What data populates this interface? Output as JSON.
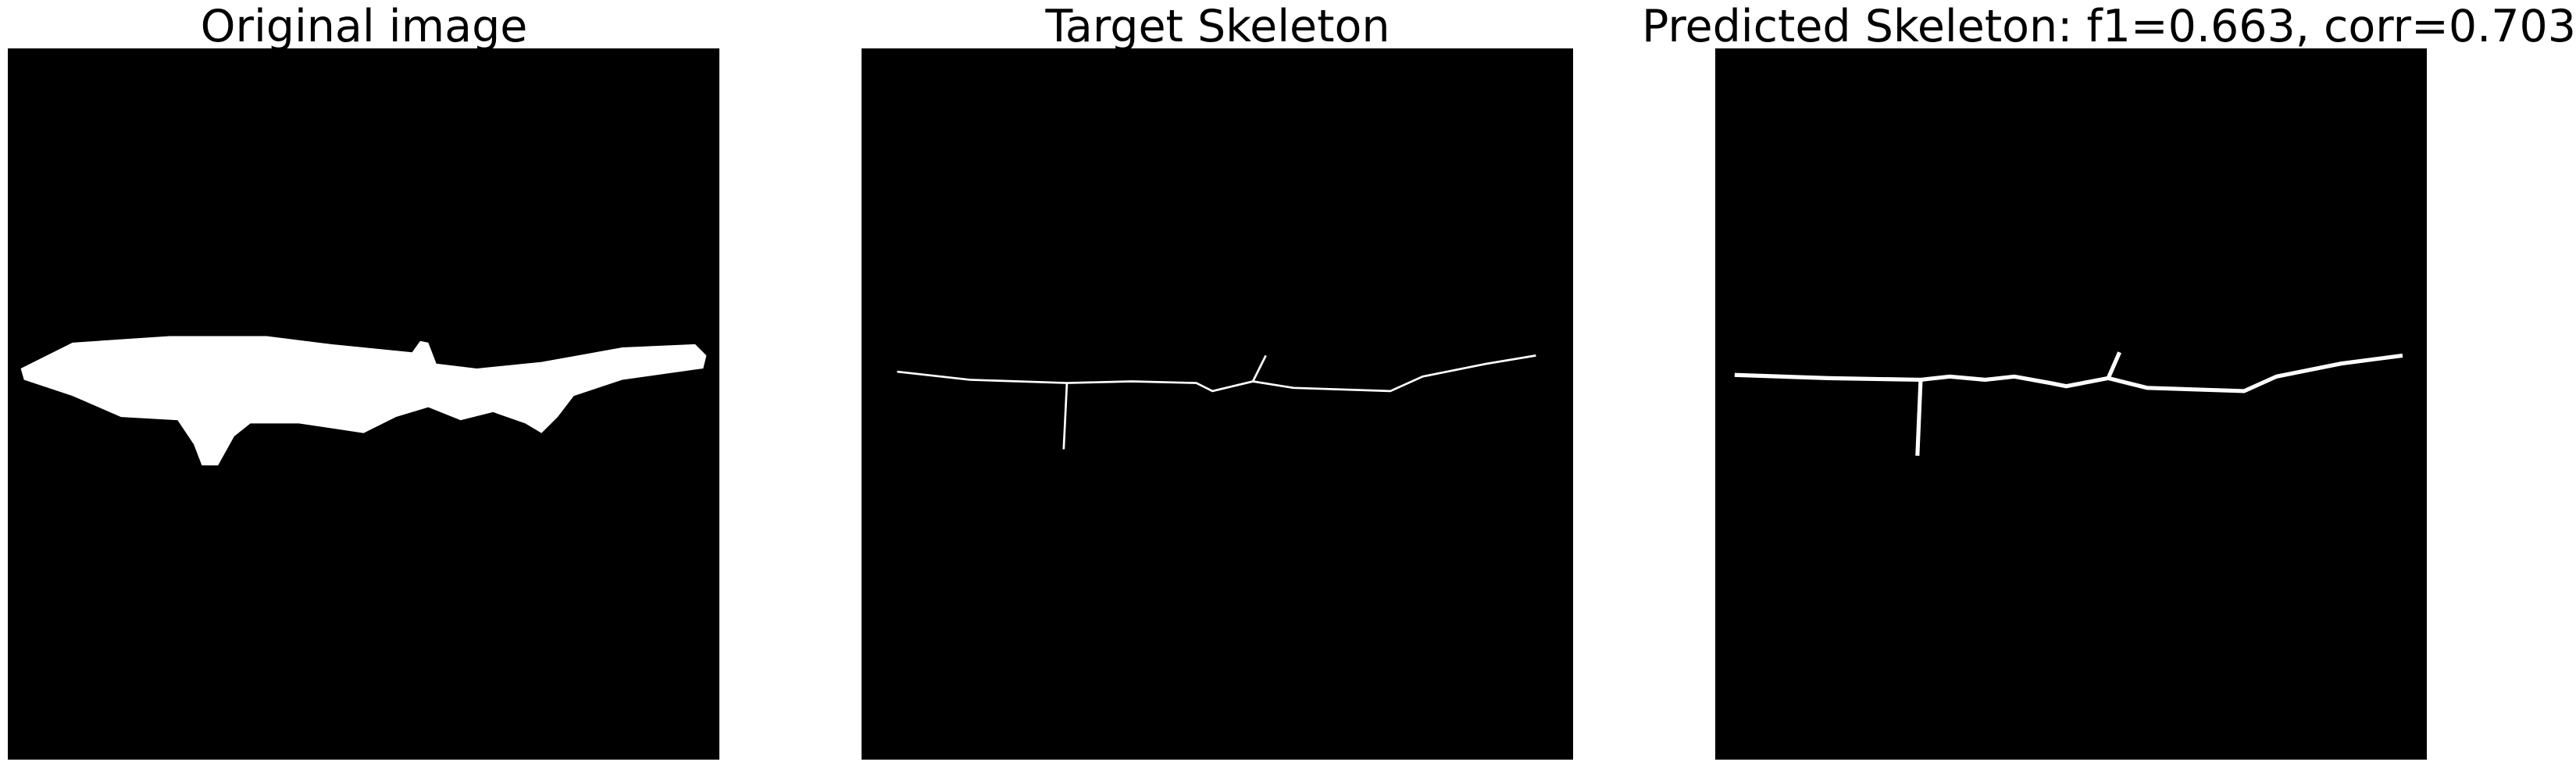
{
  "panels": [
    {
      "title": "Original image"
    },
    {
      "title": "Target Skeleton"
    },
    {
      "title": "Predicted Skeleton: f1=0.663, corr=0.703"
    }
  ]
}
